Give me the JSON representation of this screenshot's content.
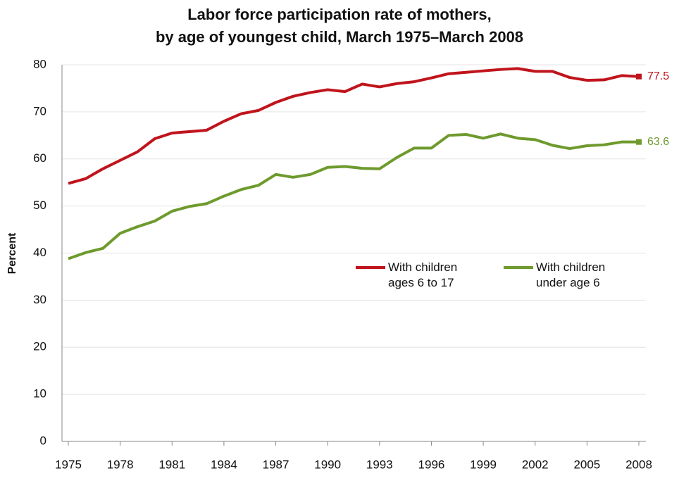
{
  "chart_data": {
    "type": "line",
    "title": [
      "Labor force participation rate of mothers,",
      "by age of youngest child, March 1975–March 2008"
    ],
    "y_label": "Percent",
    "x": [
      1975,
      1976,
      1977,
      1978,
      1979,
      1980,
      1981,
      1982,
      1983,
      1984,
      1985,
      1986,
      1987,
      1988,
      1989,
      1990,
      1991,
      1992,
      1993,
      1994,
      1995,
      1996,
      1997,
      1998,
      1999,
      2000,
      2001,
      2002,
      2003,
      2004,
      2005,
      2006,
      2007,
      2008
    ],
    "series": [
      {
        "name": "With children ages 6 to 17",
        "color": "#c0141c",
        "values": [
          54.8,
          55.8,
          57.9,
          59.7,
          61.5,
          64.3,
          65.5,
          65.8,
          66.1,
          68.0,
          69.6,
          70.3,
          72.0,
          73.3,
          74.1,
          74.7,
          74.3,
          75.9,
          75.3,
          76.0,
          76.4,
          77.2,
          78.1,
          78.4,
          78.7,
          79.0,
          79.2,
          78.6,
          78.6,
          77.3,
          76.7,
          76.8,
          77.7,
          77.5
        ]
      },
      {
        "name": "With children under age 6",
        "color": "#6e9a2e",
        "values": [
          38.8,
          40.1,
          41.0,
          44.2,
          45.6,
          46.8,
          48.9,
          49.9,
          50.5,
          52.1,
          53.5,
          54.4,
          56.7,
          56.1,
          56.7,
          58.2,
          58.4,
          58.0,
          57.9,
          60.3,
          62.3,
          62.3,
          65.0,
          65.2,
          64.4,
          65.3,
          64.4,
          64.1,
          62.9,
          62.2,
          62.8,
          63.0,
          63.6,
          63.6
        ]
      }
    ],
    "xlim": [
      1975,
      2008
    ],
    "xticks": [
      1975,
      1978,
      1981,
      1984,
      1987,
      1990,
      1993,
      1996,
      1999,
      2002,
      2005,
      2008
    ],
    "ylim": [
      0,
      80
    ],
    "yticks": [
      0,
      10,
      20,
      30,
      40,
      50,
      60,
      70,
      80
    ],
    "grid": true
  }
}
